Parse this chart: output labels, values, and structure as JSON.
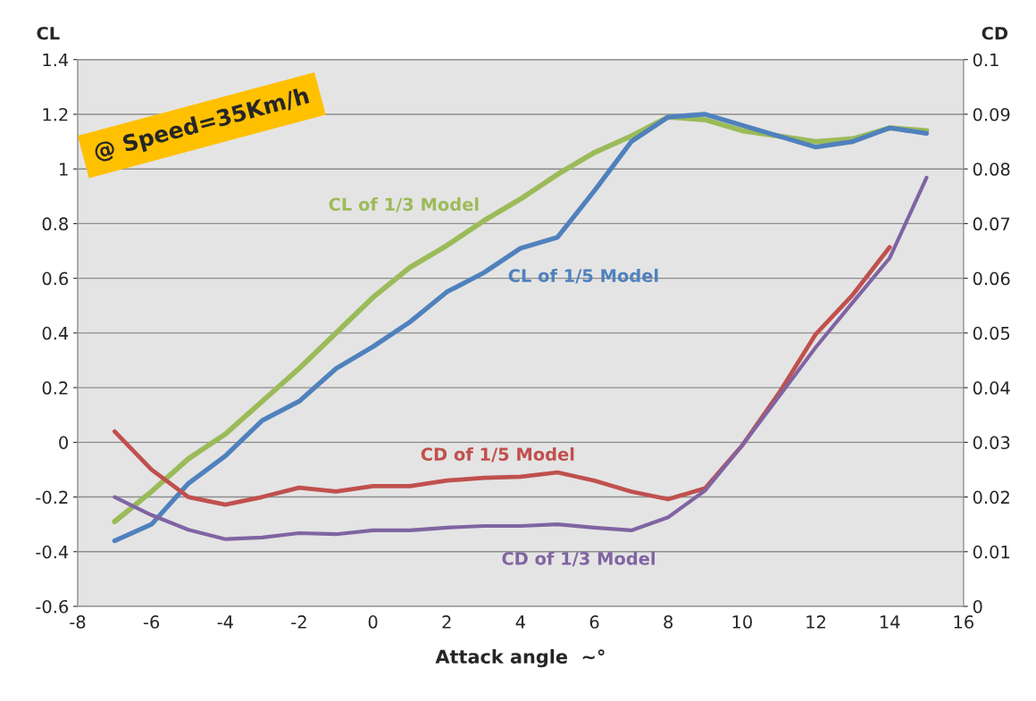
{
  "chart_data": {
    "type": "line",
    "xlabel": "Attack angle  ∼°",
    "ylabel": "CL",
    "y2label": "CD",
    "annotations": [
      "@ Speed=35Km/h"
    ],
    "x": [
      -7,
      -6,
      -5,
      -4,
      -3,
      -2,
      -1,
      0,
      1,
      2,
      3,
      4,
      5,
      6,
      7,
      8,
      9,
      10,
      11,
      12,
      13,
      14,
      15
    ],
    "series": [
      {
        "name": "CL of 1/3 Model",
        "color": "#9bbb59",
        "values": [
          -0.29,
          -0.18,
          -0.06,
          0.03,
          0.15,
          0.27,
          0.4,
          0.53,
          0.64,
          0.72,
          0.81,
          0.89,
          0.98,
          1.06,
          1.12,
          1.19,
          1.18,
          1.14,
          1.12,
          1.1,
          1.11,
          1.15,
          1.14
        ]
      },
      {
        "name": "CL of 1/5 Model",
        "color": "#4f81bd",
        "values": [
          -0.36,
          -0.3,
          -0.15,
          -0.05,
          0.08,
          0.15,
          0.27,
          0.35,
          0.44,
          0.55,
          0.62,
          0.71,
          0.75,
          0.92,
          1.1,
          1.19,
          1.2,
          1.16,
          1.12,
          1.08,
          1.1,
          1.15,
          1.13
        ]
      },
      {
        "name": "CD of 1/5 Model",
        "color": "#c0504d",
        "axis": "y2",
        "x": [
          -7,
          -6,
          -5,
          -4,
          -3,
          -2,
          -1,
          0,
          1,
          2,
          3,
          4,
          5,
          6,
          7,
          8,
          9,
          10,
          11,
          12,
          13,
          14
        ],
        "values": [
          0.032,
          0.025,
          0.02,
          0.0186,
          0.02,
          0.0217,
          0.021,
          0.022,
          0.022,
          0.023,
          0.0235,
          0.0237,
          0.0245,
          0.023,
          0.021,
          0.0196,
          0.0216,
          0.0294,
          0.039,
          0.0498,
          0.057,
          0.0657
        ]
      },
      {
        "name": "CD of 1/3 Model",
        "color": "#8064a2",
        "axis": "y2",
        "values": [
          0.02,
          0.0167,
          0.014,
          0.0123,
          0.0126,
          0.0134,
          0.0132,
          0.0139,
          0.0139,
          0.0144,
          0.0147,
          0.0147,
          0.015,
          0.0144,
          0.0139,
          0.0163,
          0.0212,
          0.0294,
          0.0384,
          0.0474,
          0.0556,
          0.0637,
          0.0784
        ]
      }
    ],
    "xlim": [
      -8,
      16
    ],
    "xticks": [
      -8,
      -6,
      -4,
      -2,
      0,
      2,
      4,
      6,
      8,
      10,
      12,
      14,
      16
    ],
    "ylim": [
      -0.6,
      1.4
    ],
    "yticks": [
      -0.6,
      -0.4,
      -0.2,
      0,
      0.2,
      0.4,
      0.6,
      0.8,
      1,
      1.2,
      1.4
    ],
    "y2lim": [
      0,
      0.1
    ],
    "y2ticks": [
      0,
      0.01,
      0.02,
      0.03,
      0.04,
      0.05,
      0.06,
      0.07,
      0.08,
      0.09,
      0.1
    ],
    "grid": "y",
    "legend": false,
    "marker": "none",
    "line_style": "solid"
  }
}
